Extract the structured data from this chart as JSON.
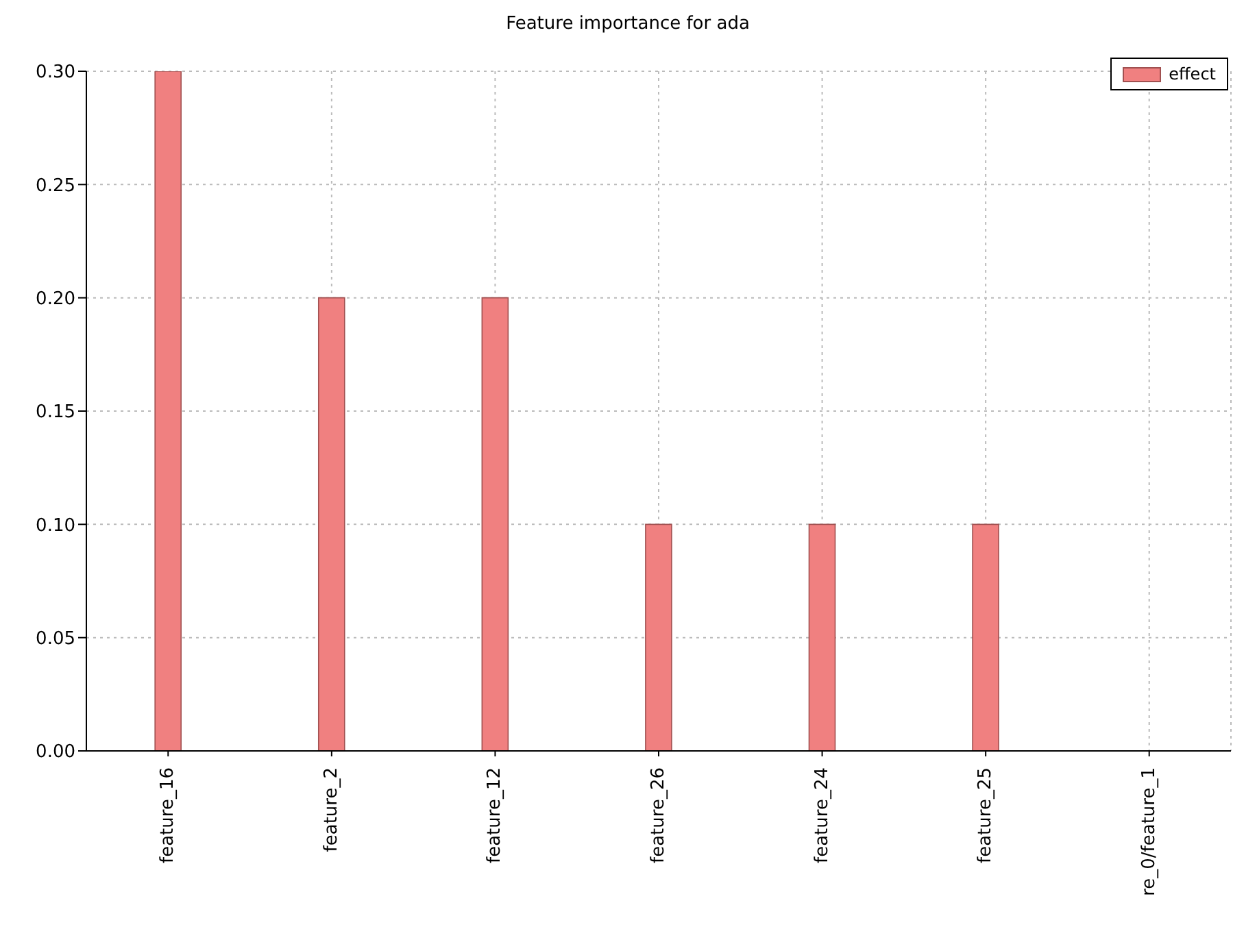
{
  "chart_data": {
    "type": "bar",
    "title": "Feature importance for ada",
    "categories": [
      "feature_16",
      "feature_2",
      "feature_12",
      "feature_26",
      "feature_24",
      "feature_25",
      "re_0/feature_1"
    ],
    "series": [
      {
        "name": "effect",
        "color": "#f08080",
        "values": [
          0.3,
          0.2,
          0.2,
          0.1,
          0.1,
          0.1,
          0
        ]
      }
    ],
    "ylim": [
      0,
      0.3
    ],
    "yticks": [
      {
        "value": 0,
        "label": "0.00"
      },
      {
        "value": 0.05,
        "label": "0.05"
      },
      {
        "value": 0.1,
        "label": "0.10"
      },
      {
        "value": 0.15,
        "label": "0.15"
      },
      {
        "value": 0.2,
        "label": "0.20"
      },
      {
        "value": 0.25,
        "label": "0.25"
      },
      {
        "value": 0.3,
        "label": "0.30"
      }
    ],
    "grid": true,
    "legend": "top right"
  }
}
